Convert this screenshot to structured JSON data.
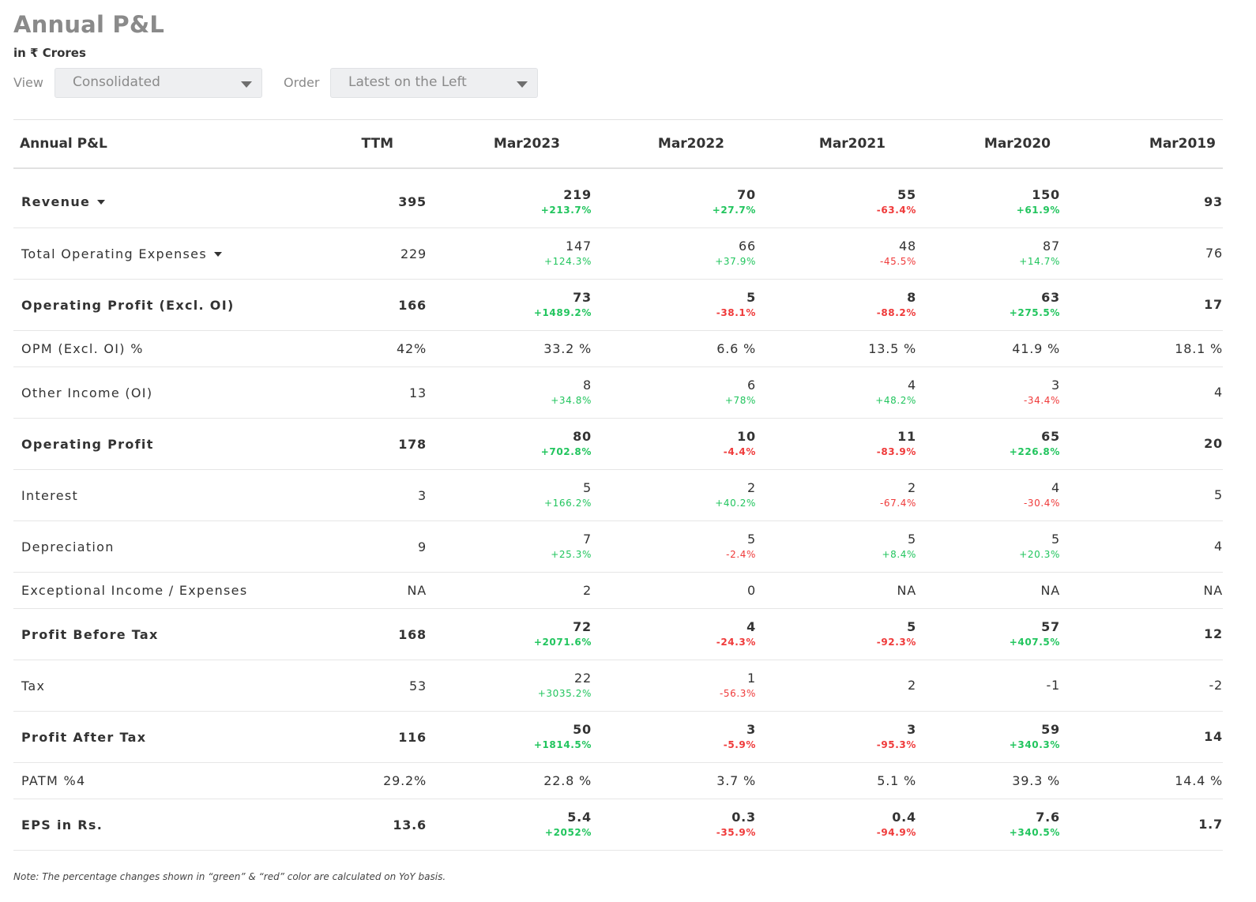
{
  "header": {
    "title": "Annual P&L",
    "unit": "in ₹ Crores",
    "view_label": "View",
    "view_value": "Consolidated",
    "order_label": "Order",
    "order_value": "Latest on the Left"
  },
  "colors": {
    "positive": "#22c55e",
    "negative": "#ef3a3a"
  },
  "table": {
    "columns": [
      "Annual P&L",
      "TTM",
      "Mar2023",
      "Mar2022",
      "Mar2021",
      "Mar2020",
      "Mar2019"
    ],
    "rows": [
      {
        "label": "Revenue",
        "bold": true,
        "expandable": true,
        "ttm": "395",
        "cells": [
          {
            "v": "219",
            "c": "+213.7%"
          },
          {
            "v": "70",
            "c": "+27.7%"
          },
          {
            "v": "55",
            "c": "-63.4%"
          },
          {
            "v": "150",
            "c": "+61.9%"
          },
          {
            "v": "93",
            "c": ""
          }
        ]
      },
      {
        "label": "Total Operating Expenses",
        "bold": false,
        "expandable": true,
        "ttm": "229",
        "cells": [
          {
            "v": "147",
            "c": "+124.3%"
          },
          {
            "v": "66",
            "c": "+37.9%"
          },
          {
            "v": "48",
            "c": "-45.5%"
          },
          {
            "v": "87",
            "c": "+14.7%"
          },
          {
            "v": "76",
            "c": ""
          }
        ]
      },
      {
        "label": "Operating Profit (Excl. OI)",
        "bold": true,
        "expandable": false,
        "ttm": "166",
        "cells": [
          {
            "v": "73",
            "c": "+1489.2%"
          },
          {
            "v": "5",
            "c": "-38.1%"
          },
          {
            "v": "8",
            "c": "-88.2%"
          },
          {
            "v": "63",
            "c": "+275.5%"
          },
          {
            "v": "17",
            "c": ""
          }
        ]
      },
      {
        "label": "OPM (Excl. OI) %",
        "bold": false,
        "expandable": false,
        "ttm": "42%",
        "cells": [
          {
            "v": "33.2 %",
            "c": ""
          },
          {
            "v": "6.6 %",
            "c": ""
          },
          {
            "v": "13.5 %",
            "c": ""
          },
          {
            "v": "41.9 %",
            "c": ""
          },
          {
            "v": "18.1 %",
            "c": ""
          }
        ]
      },
      {
        "label": "Other Income (OI)",
        "bold": false,
        "expandable": false,
        "ttm": "13",
        "cells": [
          {
            "v": "8",
            "c": "+34.8%"
          },
          {
            "v": "6",
            "c": "+78%"
          },
          {
            "v": "4",
            "c": "+48.2%"
          },
          {
            "v": "3",
            "c": "-34.4%"
          },
          {
            "v": "4",
            "c": ""
          }
        ]
      },
      {
        "label": "Operating Profit",
        "bold": true,
        "expandable": false,
        "ttm": "178",
        "cells": [
          {
            "v": "80",
            "c": "+702.8%"
          },
          {
            "v": "10",
            "c": "-4.4%"
          },
          {
            "v": "11",
            "c": "-83.9%"
          },
          {
            "v": "65",
            "c": "+226.8%"
          },
          {
            "v": "20",
            "c": ""
          }
        ]
      },
      {
        "label": "Interest",
        "bold": false,
        "expandable": false,
        "ttm": "3",
        "cells": [
          {
            "v": "5",
            "c": "+166.2%"
          },
          {
            "v": "2",
            "c": "+40.2%"
          },
          {
            "v": "2",
            "c": "-67.4%"
          },
          {
            "v": "4",
            "c": "-30.4%"
          },
          {
            "v": "5",
            "c": ""
          }
        ]
      },
      {
        "label": "Depreciation",
        "bold": false,
        "expandable": false,
        "ttm": "9",
        "cells": [
          {
            "v": "7",
            "c": "+25.3%"
          },
          {
            "v": "5",
            "c": "-2.4%"
          },
          {
            "v": "5",
            "c": "+8.4%"
          },
          {
            "v": "5",
            "c": "+20.3%"
          },
          {
            "v": "4",
            "c": ""
          }
        ]
      },
      {
        "label": "Exceptional Income / Expenses",
        "bold": false,
        "expandable": false,
        "ttm": "NA",
        "cells": [
          {
            "v": "2",
            "c": ""
          },
          {
            "v": "0",
            "c": ""
          },
          {
            "v": "NA",
            "c": ""
          },
          {
            "v": "NA",
            "c": ""
          },
          {
            "v": "NA",
            "c": ""
          }
        ]
      },
      {
        "label": "Profit Before Tax",
        "bold": true,
        "expandable": false,
        "ttm": "168",
        "cells": [
          {
            "v": "72",
            "c": "+2071.6%"
          },
          {
            "v": "4",
            "c": "-24.3%"
          },
          {
            "v": "5",
            "c": "-92.3%"
          },
          {
            "v": "57",
            "c": "+407.5%"
          },
          {
            "v": "12",
            "c": ""
          }
        ]
      },
      {
        "label": "Tax",
        "bold": false,
        "expandable": false,
        "ttm": "53",
        "cells": [
          {
            "v": "22",
            "c": "+3035.2%"
          },
          {
            "v": "1",
            "c": "-56.3%"
          },
          {
            "v": "2",
            "c": ""
          },
          {
            "v": "-1",
            "c": ""
          },
          {
            "v": "-2",
            "c": ""
          }
        ]
      },
      {
        "label": "Profit After Tax",
        "bold": true,
        "expandable": false,
        "ttm": "116",
        "cells": [
          {
            "v": "50",
            "c": "+1814.5%"
          },
          {
            "v": "3",
            "c": "-5.9%"
          },
          {
            "v": "3",
            "c": "-95.3%"
          },
          {
            "v": "59",
            "c": "+340.3%"
          },
          {
            "v": "14",
            "c": ""
          }
        ]
      },
      {
        "label": "PATM %4",
        "bold": false,
        "expandable": false,
        "ttm": "29.2%",
        "cells": [
          {
            "v": "22.8 %",
            "c": ""
          },
          {
            "v": "3.7 %",
            "c": ""
          },
          {
            "v": "5.1 %",
            "c": ""
          },
          {
            "v": "39.3 %",
            "c": ""
          },
          {
            "v": "14.4 %",
            "c": ""
          }
        ]
      },
      {
        "label": "EPS in Rs.",
        "bold": true,
        "expandable": false,
        "ttm": "13.6",
        "cells": [
          {
            "v": "5.4",
            "c": "+2052%"
          },
          {
            "v": "0.3",
            "c": "-35.9%"
          },
          {
            "v": "0.4",
            "c": "-94.9%"
          },
          {
            "v": "7.6",
            "c": "+340.5%"
          },
          {
            "v": "1.7",
            "c": ""
          }
        ]
      }
    ]
  },
  "note": "Note: The percentage changes shown in “green” & “red” color are calculated on YoY basis."
}
